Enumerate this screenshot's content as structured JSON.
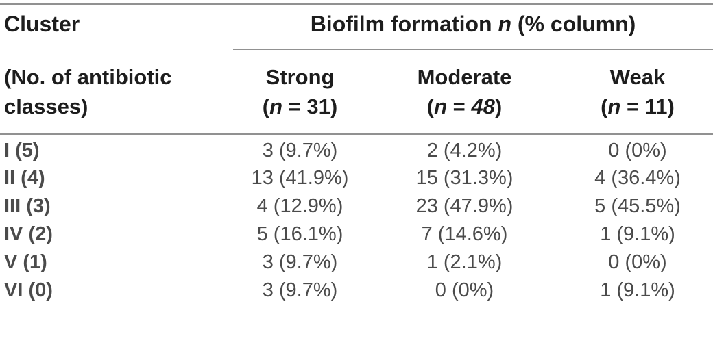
{
  "table": {
    "corner_header": "Cluster",
    "corner_subheader": {
      "line1": "(No. of antibiotic",
      "line2": "classes)"
    },
    "group_header": {
      "prefix": "Biofilm formation ",
      "n_italic": "n",
      "suffix": " (% column)"
    },
    "columns": [
      {
        "name": "Strong",
        "paren_open": "(",
        "n_italic": "n",
        "equals": " = ",
        "count": "31",
        "paren_close": ")",
        "count_class": ""
      },
      {
        "name": "Moderate",
        "paren_open": "(",
        "n_italic": "n",
        "equals": " = ",
        "count": "48",
        "paren_close": ")",
        "count_class": "italic-count"
      },
      {
        "name": "Weak",
        "paren_open": "(",
        "n_italic": "n",
        "equals": " = ",
        "count": "11",
        "paren_close": ")",
        "count_class": ""
      }
    ],
    "rows": [
      {
        "label": "I (5)",
        "strong": "3 (9.7%)",
        "moderate": "2 (4.2%)",
        "weak": "0 (0%)"
      },
      {
        "label": "II (4)",
        "strong": "13 (41.9%)",
        "moderate": "15 (31.3%)",
        "weak": "4 (36.4%)"
      },
      {
        "label": "III (3)",
        "strong": "4 (12.9%)",
        "moderate": "23 (47.9%)",
        "weak": "5 (45.5%)"
      },
      {
        "label": "IV (2)",
        "strong": "5 (16.1%)",
        "moderate": "7 (14.6%)",
        "weak": "1 (9.1%)"
      },
      {
        "label": "V (1)",
        "strong": "3 (9.7%)",
        "moderate": "1 (2.1%)",
        "weak": "0 (0%)"
      },
      {
        "label": "VI (0)",
        "strong": "3 (9.7%)",
        "moderate": "0 (0%)",
        "weak": "1 (9.1%)"
      }
    ],
    "colors": {
      "header_text": "#1d1d1d",
      "body_text": "#4b4b4b",
      "rule": "#919191",
      "background": "#ffffff"
    }
  }
}
